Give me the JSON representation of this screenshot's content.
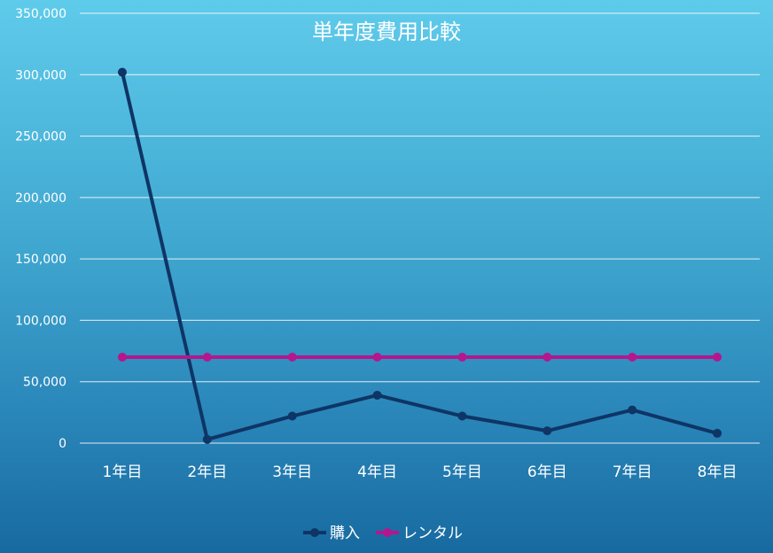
{
  "chart_data": {
    "type": "line",
    "title": "単年度費用比較",
    "categories": [
      "1年目",
      "2年目",
      "3年目",
      "4年目",
      "5年目",
      "6年目",
      "7年目",
      "8年目"
    ],
    "series": [
      {
        "name": "購入",
        "color": "#0e3566",
        "values": [
          302000,
          3000,
          22000,
          39000,
          22000,
          10000,
          27000,
          8000
        ]
      },
      {
        "name": "レンタル",
        "color": "#b5168e",
        "values": [
          70000,
          70000,
          70000,
          70000,
          70000,
          70000,
          70000,
          70000
        ]
      }
    ],
    "ylim": [
      0,
      350000
    ],
    "yticks": [
      "0",
      "50,000",
      "100,000",
      "150,000",
      "200,000",
      "250,000",
      "300,000",
      "350,000"
    ],
    "grid": true,
    "legend_position": "bottom"
  }
}
